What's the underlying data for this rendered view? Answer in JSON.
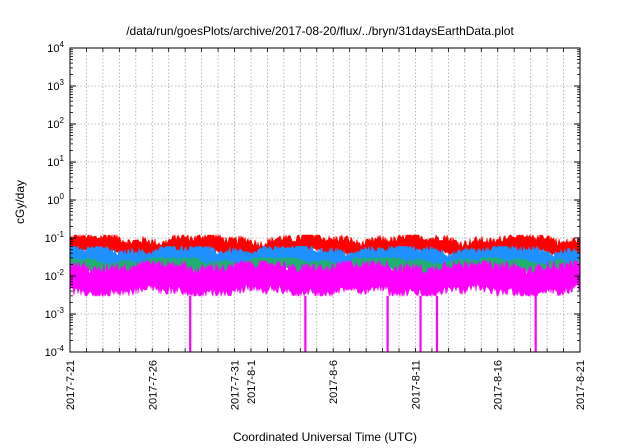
{
  "chart_data": {
    "type": "line",
    "title": "/data/run/goesPlots/archive/2017-08-20/flux/../bryn/31daysEarthData.plot",
    "xlabel": "Coordinated Universal Time (UTC)",
    "ylabel": "cGy/day",
    "x_start": "2017-7-21",
    "x_end": "2017-8-21",
    "x_ticks": [
      "2017-7-21",
      "2017-7-26",
      "2017-7-31",
      "2017-8-1",
      "2017-8-6",
      "2017-8-11",
      "2017-8-16",
      "2017-8-21"
    ],
    "y_scale": "log",
    "ylim": [
      0.0001,
      10000
    ],
    "y_tick_labels": [
      {
        "base": "10",
        "exp": "-4"
      },
      {
        "base": "10",
        "exp": "-3"
      },
      {
        "base": "10",
        "exp": "-2"
      },
      {
        "base": "10",
        "exp": "-1"
      },
      {
        "base": "10",
        "exp": "0"
      },
      {
        "base": "10",
        "exp": "1"
      },
      {
        "base": "10",
        "exp": "2"
      },
      {
        "base": "10",
        "exp": "3"
      },
      {
        "base": "10",
        "exp": "4"
      }
    ],
    "grid": true,
    "series": [
      {
        "color": "#ff0000",
        "approx_level": 0.05,
        "range": [
          0.035,
          0.12
        ]
      },
      {
        "color": "#1e90ff",
        "approx_level": 0.03,
        "range": [
          0.012,
          0.06
        ]
      },
      {
        "color": "#20b070",
        "approx_level": 0.018,
        "range": [
          0.01,
          0.03
        ]
      },
      {
        "color": "#ff00ff",
        "approx_level": 0.008,
        "range": [
          0.003,
          0.025
        ],
        "dropouts": [
          "2017-7-28",
          "2017-8-4",
          "2017-8-9",
          "2017-8-11",
          "2017-8-12",
          "2017-8-18"
        ]
      }
    ]
  }
}
